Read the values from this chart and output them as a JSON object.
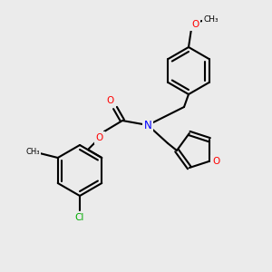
{
  "bg_color": "#ebebeb",
  "bond_color": "#000000",
  "atom_colors": {
    "O": "#ff0000",
    "N": "#0000ff",
    "Cl": "#00aa00",
    "C": "#000000"
  },
  "font_size": 7.5,
  "line_width": 1.5
}
